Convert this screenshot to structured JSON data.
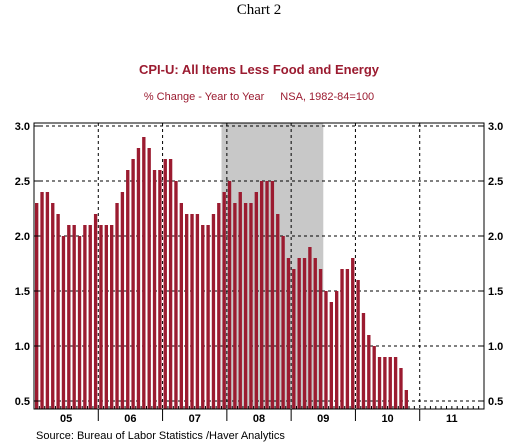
{
  "page": {
    "title": "Chart 2"
  },
  "source": "Source:  Bureau of Labor Statistics /Haver Analytics",
  "colors": {
    "bar": "#9b1b30",
    "recession": "#c8c8c8",
    "text": "#9b1b30"
  },
  "chart_data": {
    "type": "bar",
    "title": "CPI-U: All Items Less Food and Energy",
    "subtitle_left": "% Change - Year to Year",
    "subtitle_right": "NSA, 1982-84=100",
    "xlabel": "",
    "ylabel": "",
    "ylim": [
      0.5,
      3.0
    ],
    "yticks": [
      "3.0",
      "2.5",
      "2.0",
      "1.5",
      "1.0",
      "0.5"
    ],
    "year_labels": [
      "05",
      "06",
      "07",
      "08",
      "09",
      "10",
      "11"
    ],
    "grid": true,
    "recession_shading": {
      "start": "2007-12",
      "end": "2009-06"
    },
    "series": [
      {
        "start": "2005-01",
        "values": [
          2.3,
          2.4,
          2.4,
          2.3,
          2.2,
          2.0,
          2.1,
          2.1,
          2.0,
          2.1,
          2.1,
          2.2,
          2.1,
          2.1,
          2.1,
          2.3,
          2.4,
          2.6,
          2.7,
          2.8,
          2.9,
          2.8,
          2.6,
          2.6,
          2.7,
          2.7,
          2.5,
          2.3,
          2.2,
          2.2,
          2.2,
          2.1,
          2.1,
          2.2,
          2.3,
          2.4,
          2.5,
          2.3,
          2.4,
          2.3,
          2.3,
          2.4,
          2.5,
          2.5,
          2.5,
          2.2,
          2.0,
          1.8,
          1.7,
          1.8,
          1.8,
          1.9,
          1.8,
          1.7,
          1.5,
          1.4,
          1.5,
          1.7,
          1.7,
          1.8,
          1.6,
          1.3,
          1.1,
          1.0,
          0.9,
          0.9,
          0.9,
          0.9,
          0.8,
          0.6
        ]
      }
    ]
  }
}
